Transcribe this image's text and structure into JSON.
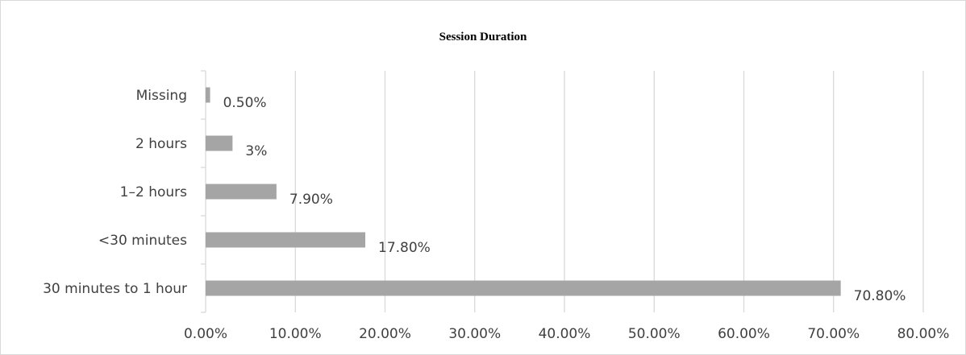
{
  "chart_data": {
    "type": "bar",
    "orientation": "horizontal",
    "title": "Session Duration",
    "xlabel": "",
    "ylabel": "",
    "categories": [
      "30 minutes to 1 hour",
      "<30 minutes",
      "1–2 hours",
      "2 hours",
      "Missing"
    ],
    "values": [
      70.8,
      17.8,
      7.9,
      3,
      0.5
    ],
    "data_labels": [
      "70.80%",
      "17.80%",
      "7.90%",
      "3%",
      "0.50%"
    ],
    "xlim": [
      0,
      80
    ],
    "x_ticks": [
      0,
      10,
      20,
      30,
      40,
      50,
      60,
      70,
      80
    ],
    "x_tick_labels": [
      "0.00%",
      "10.00%",
      "20.00%",
      "30.00%",
      "40.00%",
      "50.00%",
      "60.00%",
      "70.00%",
      "80.00%"
    ],
    "grid": true,
    "legend": "none",
    "colors": {
      "bar": "#a5a5a5",
      "grid": "#d9d9d9",
      "text": "#404040"
    }
  }
}
